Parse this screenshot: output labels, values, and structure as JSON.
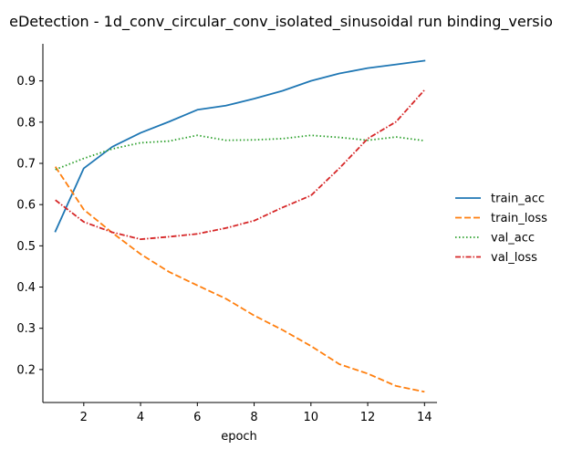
{
  "chart_data": {
    "type": "line",
    "title": "eDetection - 1d_conv_circular_conv_isolated_sinusoidal run binding_versio",
    "xlabel": "epoch",
    "ylabel": "",
    "x": [
      1,
      2,
      3,
      4,
      5,
      6,
      7,
      8,
      9,
      10,
      11,
      12,
      13,
      14
    ],
    "xlim": [
      0.56,
      14.44
    ],
    "ylim": [
      0.12,
      0.99
    ],
    "xticks": [
      2,
      4,
      6,
      8,
      10,
      12,
      14
    ],
    "yticks": [
      0.2,
      0.3,
      0.4,
      0.5,
      0.6,
      0.7,
      0.8,
      0.9
    ],
    "xtick_labels": [
      "2",
      "4",
      "6",
      "8",
      "10",
      "12",
      "14"
    ],
    "ytick_labels": [
      "0.2",
      "0.3",
      "0.4",
      "0.5",
      "0.6",
      "0.7",
      "0.8",
      "0.9"
    ],
    "grid": false,
    "legend_position": "right",
    "series": [
      {
        "name": "train_acc",
        "color": "#1f77b4",
        "dash": "solid",
        "values": [
          0.535,
          0.688,
          0.74,
          0.774,
          0.801,
          0.83,
          0.84,
          0.857,
          0.876,
          0.9,
          0.918,
          0.931,
          0.94,
          0.949
        ]
      },
      {
        "name": "train_loss",
        "color": "#ff7f0e",
        "dash": "dashed",
        "values": [
          0.692,
          0.588,
          0.532,
          0.48,
          0.437,
          0.404,
          0.372,
          0.331,
          0.296,
          0.257,
          0.213,
          0.19,
          0.16,
          0.146
        ]
      },
      {
        "name": "val_acc",
        "color": "#2ca02c",
        "dash": "dotted",
        "values": [
          0.685,
          0.712,
          0.735,
          0.75,
          0.754,
          0.768,
          0.756,
          0.757,
          0.76,
          0.768,
          0.763,
          0.756,
          0.764,
          0.755
        ]
      },
      {
        "name": "val_loss",
        "color": "#d62728",
        "dash": "dashdot",
        "values": [
          0.611,
          0.558,
          0.533,
          0.516,
          0.522,
          0.529,
          0.543,
          0.561,
          0.593,
          0.622,
          0.688,
          0.76,
          0.801,
          0.878
        ]
      }
    ]
  }
}
